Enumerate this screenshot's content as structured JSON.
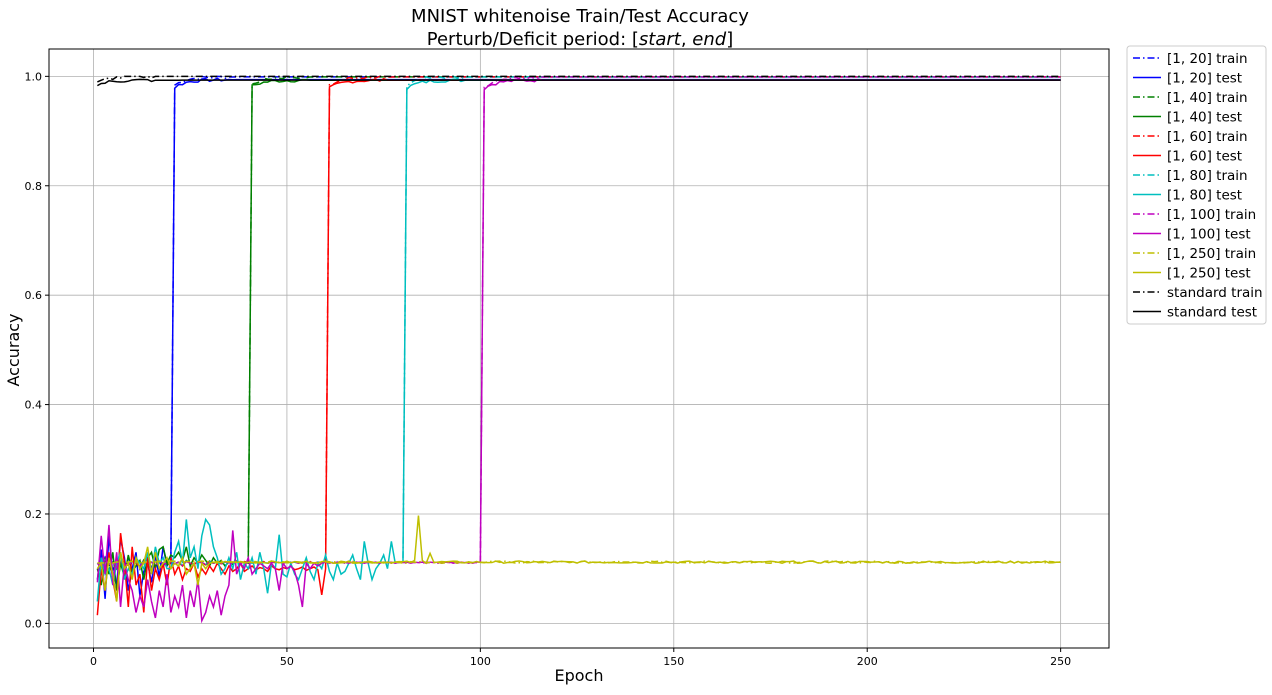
{
  "chart_data": {
    "type": "line",
    "title_line1": "MNIST whitenoise Train/Test Accuracy",
    "title_line2_prefix": "Perturb/Deficit period: [",
    "title_line2_start": "start",
    "title_line2_sep": ", ",
    "title_line2_end": "end",
    "title_line2_suffix": "]",
    "xlabel": "Epoch",
    "ylabel": "Accuracy",
    "xlim": [
      -11.5,
      262.5
    ],
    "ylim": [
      -0.045,
      1.05
    ],
    "xticks": [
      0,
      50,
      100,
      150,
      200,
      250
    ],
    "yticks": [
      0.0,
      0.2,
      0.4,
      0.6,
      0.8,
      1.0
    ],
    "xtick_labels": [
      "0",
      "50",
      "100",
      "150",
      "200",
      "250"
    ],
    "ytick_labels": [
      "0.0",
      "0.2",
      "0.4",
      "0.6",
      "0.8",
      "1.0"
    ],
    "grid": true,
    "legend_position": "outside-right-top",
    "epochs_total": 250,
    "series": [
      {
        "name": "[1, 20] train",
        "color": "#0000ff",
        "dash": "dashdot",
        "switch": 20,
        "early": [
          0.11,
          0.103,
          0.121,
          0.108,
          0.097,
          0.115,
          0.112,
          0.101,
          0.118,
          0.106,
          0.111,
          0.099,
          0.114,
          0.109,
          0.103,
          0.117,
          0.112,
          0.105,
          0.113,
          0.11
        ],
        "late_start": 0.984,
        "late_plateau": 0.999
      },
      {
        "name": "[1, 20] test",
        "color": "#0000ff",
        "dash": "solid",
        "switch": 20,
        "early": [
          0.08,
          0.135,
          0.045,
          0.16,
          0.09,
          0.07,
          0.155,
          0.12,
          0.06,
          0.1,
          0.13,
          0.05,
          0.095,
          0.11,
          0.075,
          0.125,
          0.085,
          0.14,
          0.105,
          0.115
        ],
        "late_start": 0.98,
        "late_plateau": 0.994
      },
      {
        "name": "[1, 40] train",
        "color": "#008000",
        "dash": "dashdot",
        "switch": 40,
        "early": [
          0.11,
          0.104,
          0.118,
          0.107,
          0.112,
          0.1,
          0.115,
          0.109,
          0.106,
          0.113,
          0.111,
          0.103,
          0.116,
          0.108,
          0.112,
          0.105,
          0.114,
          0.11,
          0.107,
          0.113,
          0.109,
          0.112,
          0.104,
          0.115,
          0.11,
          0.108,
          0.113,
          0.111,
          0.106,
          0.114,
          0.11,
          0.112,
          0.108,
          0.113,
          0.111,
          0.109,
          0.112,
          0.11,
          0.113,
          0.111
        ],
        "late_start": 0.985,
        "late_plateau": 0.999
      },
      {
        "name": "[1, 40] test",
        "color": "#008000",
        "dash": "solid",
        "switch": 40,
        "early": [
          0.1,
          0.07,
          0.12,
          0.09,
          0.13,
          0.06,
          0.11,
          0.085,
          0.125,
          0.095,
          0.105,
          0.115,
          0.08,
          0.12,
          0.13,
          0.1,
          0.135,
          0.14,
          0.11,
          0.125,
          0.12,
          0.13,
          0.115,
          0.14,
          0.105,
          0.12,
          0.11,
          0.125,
          0.115,
          0.105,
          0.12,
          0.11,
          0.115,
          0.105,
          0.112,
          0.108,
          0.114,
          0.11,
          0.112,
          0.11
        ],
        "late_start": 0.982,
        "late_plateau": 0.993
      },
      {
        "name": "[1, 60] train",
        "color": "#ff0000",
        "dash": "dashdot",
        "switch": 60,
        "early": [
          0.11,
          0.105,
          0.118,
          0.108,
          0.112,
          0.102,
          0.115,
          0.109,
          0.106,
          0.113,
          0.11,
          0.104,
          0.116,
          0.108,
          0.112,
          0.106,
          0.114,
          0.11,
          0.108,
          0.113,
          0.109,
          0.112,
          0.105,
          0.114,
          0.11,
          0.108,
          0.113,
          0.111,
          0.107,
          0.113,
          0.11,
          0.112,
          0.109,
          0.113,
          0.111,
          0.11,
          0.112,
          0.11,
          0.113,
          0.111,
          0.11,
          0.112,
          0.111,
          0.113,
          0.11,
          0.112,
          0.111,
          0.112,
          0.11,
          0.113,
          0.111,
          0.112,
          0.11,
          0.112,
          0.111,
          0.113,
          0.11,
          0.112,
          0.111,
          0.112
        ],
        "late_start": 0.982,
        "late_plateau": 0.999
      },
      {
        "name": "[1, 60] test",
        "color": "#ff0000",
        "dash": "solid",
        "switch": 60,
        "early": [
          0.015,
          0.1,
          0.06,
          0.13,
          0.08,
          0.04,
          0.165,
          0.11,
          0.03,
          0.14,
          0.07,
          0.09,
          0.02,
          0.12,
          0.06,
          0.1,
          0.08,
          0.11,
          0.07,
          0.12,
          0.09,
          0.105,
          0.08,
          0.1,
          0.095,
          0.11,
          0.085,
          0.1,
          0.09,
          0.105,
          0.095,
          0.11,
          0.1,
          0.09,
          0.105,
          0.095,
          0.1,
          0.11,
          0.095,
          0.1,
          0.105,
          0.098,
          0.102,
          0.1,
          0.095,
          0.105,
          0.1,
          0.098,
          0.102,
          0.1,
          0.105,
          0.098,
          0.1,
          0.103,
          0.097,
          0.1,
          0.103,
          0.098,
          0.052,
          0.1
        ],
        "late_start": 0.978,
        "late_plateau": 0.993
      },
      {
        "name": "[1, 80] train",
        "color": "#00bfbf",
        "dash": "dashdot",
        "switch": 80,
        "early": [
          0.11,
          0.106,
          0.117,
          0.108,
          0.112,
          0.103,
          0.115,
          0.109,
          0.107,
          0.113,
          0.11,
          0.105,
          0.115,
          0.108,
          0.112,
          0.106,
          0.114,
          0.11,
          0.108,
          0.113,
          0.109,
          0.112,
          0.106,
          0.114,
          0.11,
          0.108,
          0.112,
          0.111,
          0.108,
          0.113,
          0.11,
          0.112,
          0.109,
          0.112,
          0.111,
          0.11,
          0.112,
          0.11,
          0.112,
          0.111,
          0.11,
          0.112,
          0.111,
          0.112,
          0.11,
          0.112,
          0.111,
          0.112,
          0.11,
          0.112,
          0.111,
          0.112,
          0.11,
          0.112,
          0.111,
          0.112,
          0.11,
          0.112,
          0.111,
          0.112,
          0.11,
          0.112,
          0.111,
          0.112,
          0.11,
          0.112,
          0.111,
          0.112,
          0.11,
          0.112,
          0.111,
          0.112,
          0.11,
          0.112,
          0.111,
          0.112,
          0.11,
          0.112,
          0.111,
          0.112
        ],
        "late_start": 0.985,
        "late_plateau": 0.999
      },
      {
        "name": "[1, 80] test",
        "color": "#00bfbf",
        "dash": "solid",
        "switch": 80,
        "early": [
          0.04,
          0.12,
          0.09,
          0.1,
          0.07,
          0.11,
          0.13,
          0.08,
          0.1,
          0.09,
          0.12,
          0.11,
          0.1,
          0.13,
          0.09,
          0.14,
          0.11,
          0.12,
          0.1,
          0.1,
          0.13,
          0.15,
          0.11,
          0.19,
          0.12,
          0.14,
          0.1,
          0.16,
          0.19,
          0.18,
          0.14,
          0.12,
          0.09,
          0.1,
          0.12,
          0.1,
          0.13,
          0.08,
          0.11,
          0.1,
          0.12,
          0.09,
          0.13,
          0.1,
          0.055,
          0.11,
          0.1,
          0.162,
          0.09,
          0.085,
          0.11,
          0.09,
          0.08,
          0.1,
          0.12,
          0.095,
          0.08,
          0.11,
          0.1,
          0.125,
          0.095,
          0.08,
          0.11,
          0.09,
          0.095,
          0.11,
          0.125,
          0.1,
          0.08,
          0.15,
          0.11,
          0.08,
          0.1,
          0.11,
          0.125,
          0.1,
          0.15,
          0.11,
          0.112,
          0.112
        ],
        "late_start": 0.978,
        "late_plateau": 0.993
      },
      {
        "name": "[1, 100] train",
        "color": "#bf00bf",
        "dash": "dashdot",
        "switch": 100,
        "early": [
          0.11,
          0.105,
          0.117,
          0.108,
          0.112,
          0.103,
          0.115,
          0.109,
          0.107,
          0.113,
          0.11,
          0.105,
          0.114,
          0.108,
          0.112,
          0.106,
          0.113,
          0.11,
          0.108,
          0.112,
          0.109,
          0.112,
          0.106,
          0.113,
          0.11,
          0.108,
          0.112,
          0.111,
          0.108,
          0.112,
          0.11,
          0.112,
          0.109,
          0.112,
          0.111,
          0.11,
          0.112,
          0.11,
          0.112,
          0.111,
          0.11,
          0.112,
          0.111,
          0.112,
          0.11,
          0.112,
          0.111,
          0.112,
          0.11,
          0.112,
          0.111,
          0.112,
          0.11,
          0.112,
          0.111,
          0.112,
          0.11,
          0.112,
          0.111,
          0.112,
          0.11,
          0.112,
          0.111,
          0.112,
          0.11,
          0.112,
          0.111,
          0.112,
          0.11,
          0.112,
          0.111,
          0.112,
          0.11,
          0.112,
          0.111,
          0.112,
          0.11,
          0.112,
          0.111,
          0.112,
          0.11,
          0.112,
          0.111,
          0.112,
          0.11,
          0.112,
          0.111,
          0.112,
          0.11,
          0.112,
          0.111,
          0.112,
          0.11,
          0.112,
          0.111,
          0.112,
          0.11,
          0.112,
          0.111,
          0.112
        ],
        "late_start": 0.98,
        "late_plateau": 0.999
      },
      {
        "name": "[1, 100] test",
        "color": "#bf00bf",
        "dash": "solid",
        "switch": 100,
        "early": [
          0.075,
          0.16,
          0.09,
          0.18,
          0.07,
          0.13,
          0.03,
          0.11,
          0.08,
          0.06,
          0.02,
          0.05,
          0.03,
          0.08,
          0.04,
          0.01,
          0.06,
          0.03,
          0.09,
          0.02,
          0.05,
          0.03,
          0.07,
          0.01,
          0.06,
          0.03,
          0.08,
          0.005,
          0.02,
          0.05,
          0.03,
          0.06,
          0.015,
          0.05,
          0.07,
          0.17,
          0.09,
          0.11,
          0.1,
          0.12,
          0.09,
          0.1,
          0.11,
          0.105,
          0.1,
          0.11,
          0.1,
          0.06,
          0.11,
          0.1,
          0.105,
          0.095,
          0.07,
          0.03,
          0.11,
          0.1,
          0.11,
          0.105,
          0.11,
          0.112,
          0.112,
          0.11,
          0.112,
          0.111,
          0.112,
          0.11,
          0.112,
          0.111,
          0.112,
          0.11,
          0.112,
          0.111,
          0.112,
          0.11,
          0.112,
          0.111,
          0.112,
          0.11,
          0.112,
          0.111,
          0.112,
          0.11,
          0.112,
          0.111,
          0.112,
          0.11,
          0.112,
          0.111,
          0.112,
          0.11,
          0.112,
          0.111,
          0.112,
          0.11,
          0.112,
          0.111,
          0.112,
          0.11,
          0.112,
          0.112
        ],
        "late_start": 0.978,
        "late_plateau": 0.993
      },
      {
        "name": "[1, 250] train",
        "color": "#bfbf00",
        "dash": "dashdot",
        "switch": 250,
        "early_noise": 0.006,
        "level": 0.112
      },
      {
        "name": "[1, 250] test",
        "color": "#bfbf00",
        "dash": "solid",
        "switch": 250,
        "early_head": [
          0.1,
          0.11,
          0.06,
          0.12,
          0.09,
          0.04,
          0.13,
          0.1,
          0.11,
          0.08,
          0.12,
          0.1,
          0.11,
          0.14,
          0.09,
          0.13,
          0.1,
          0.11,
          0.12,
          0.1,
          0.11,
          0.105,
          0.12,
          0.09,
          0.1,
          0.11,
          0.07,
          0.11,
          0.1,
          0.11
        ],
        "spike_epoch": 84,
        "spike_value": 0.197,
        "spike2_epoch": 87,
        "spike2_value": 0.128,
        "level": 0.112
      },
      {
        "name": "standard train",
        "color": "#000000",
        "dash": "dashdot",
        "switch": 0,
        "late_start": 0.988,
        "late_plateau": 1.0
      },
      {
        "name": "standard test",
        "color": "#000000",
        "dash": "solid",
        "switch": 0,
        "late_start": 0.984,
        "late_plateau": 0.993
      }
    ]
  }
}
